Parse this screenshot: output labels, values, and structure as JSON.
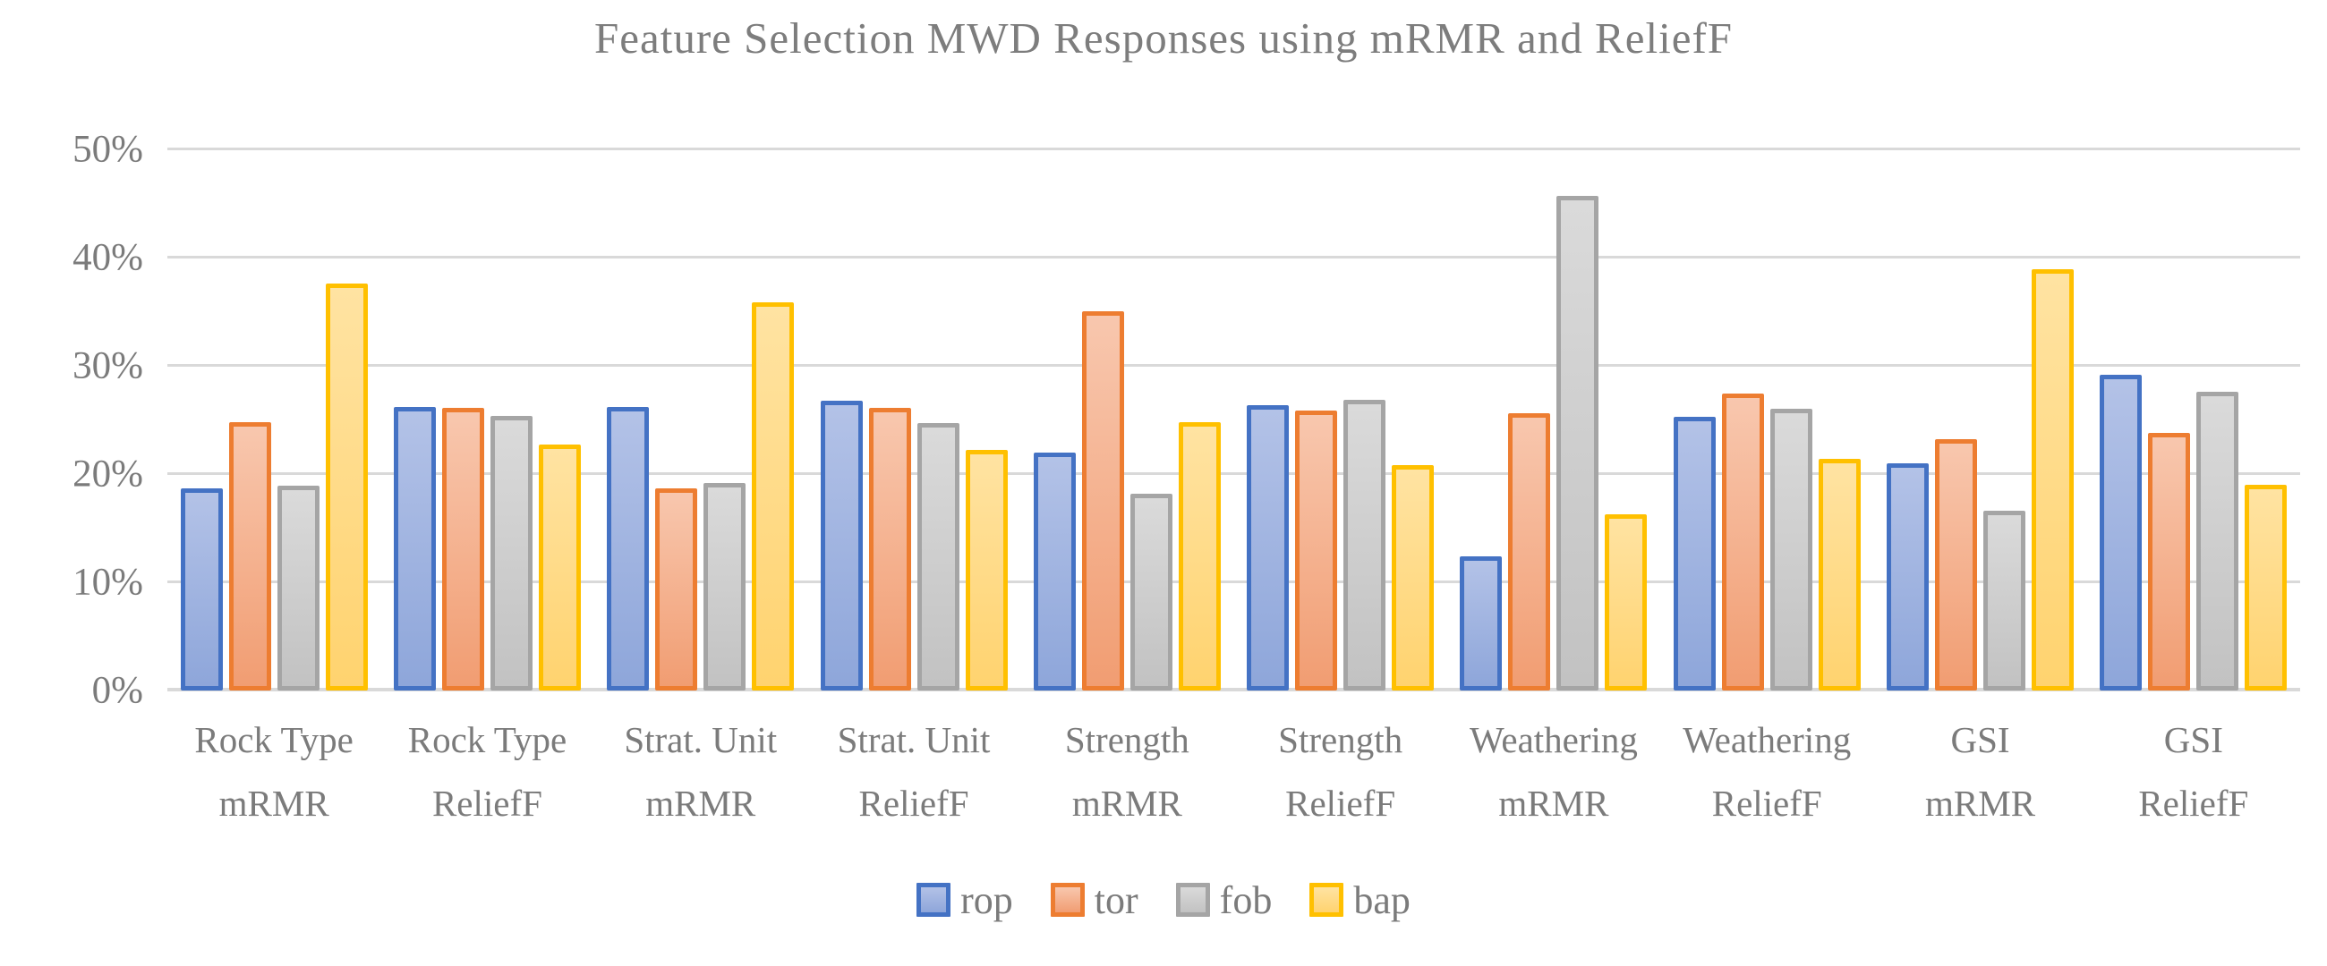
{
  "chart_data": {
    "type": "bar",
    "title": "Feature Selection MWD Responses using mRMR and ReliefF",
    "categories": [
      "Rock Type mRMR",
      "Rock Type ReliefF",
      "Strat. Unit mRMR",
      "Strat. Unit ReliefF",
      "Strength mRMR",
      "Strength ReliefF",
      "Weathering mRMR",
      "Weathering ReliefF",
      "GSI mRMR",
      "GSI ReliefF"
    ],
    "category_lines": [
      [
        "Rock Type",
        "mRMR"
      ],
      [
        "Rock Type",
        "ReliefF"
      ],
      [
        "Strat. Unit",
        "mRMR"
      ],
      [
        "Strat. Unit",
        "ReliefF"
      ],
      [
        "Strength",
        "mRMR"
      ],
      [
        "Strength",
        "ReliefF"
      ],
      [
        "Weathering",
        "mRMR"
      ],
      [
        "Weathering",
        "ReliefF"
      ],
      [
        "GSI",
        "mRMR"
      ],
      [
        "GSI",
        "ReliefF"
      ]
    ],
    "series": [
      {
        "name": "rop",
        "border_color": "#4472c4",
        "fill_top": "#b3c2e7",
        "fill_bottom": "#8ea6da",
        "values": [
          18.7,
          26.2,
          26.2,
          26.8,
          22.0,
          26.4,
          12.4,
          25.3,
          21.0,
          29.2
        ]
      },
      {
        "name": "tor",
        "border_color": "#ed7d31",
        "fill_top": "#f8c7ae",
        "fill_bottom": "#f19d72",
        "values": [
          24.8,
          26.1,
          18.7,
          26.1,
          35.0,
          25.9,
          25.6,
          27.4,
          23.2,
          23.8
        ]
      },
      {
        "name": "fob",
        "border_color": "#a5a5a5",
        "fill_top": "#dadada",
        "fill_bottom": "#c2c2c2",
        "values": [
          18.9,
          25.4,
          19.2,
          24.7,
          18.2,
          26.9,
          45.7,
          26.0,
          16.6,
          27.6
        ]
      },
      {
        "name": "bap",
        "border_color": "#ffc000",
        "fill_top": "#ffe3a2",
        "fill_bottom": "#ffd36f",
        "values": [
          37.6,
          22.7,
          35.9,
          22.2,
          24.8,
          20.8,
          16.3,
          21.4,
          38.9,
          19.0
        ]
      }
    ],
    "y_ticks": [
      {
        "value": 0,
        "label": "0%"
      },
      {
        "value": 10,
        "label": "10%"
      },
      {
        "value": 20,
        "label": "20%"
      },
      {
        "value": 30,
        "label": "30%"
      },
      {
        "value": 40,
        "label": "40%"
      },
      {
        "value": 50,
        "label": "50%"
      }
    ],
    "ylim": [
      0,
      50
    ],
    "xlabel": "",
    "ylabel": "",
    "grid": true,
    "legend_position": "bottom",
    "colors": {
      "background": "#ffffff",
      "gridline": "#d9d9d9",
      "text": "#7b7b7b",
      "title_text": "#7d7d7d"
    }
  }
}
